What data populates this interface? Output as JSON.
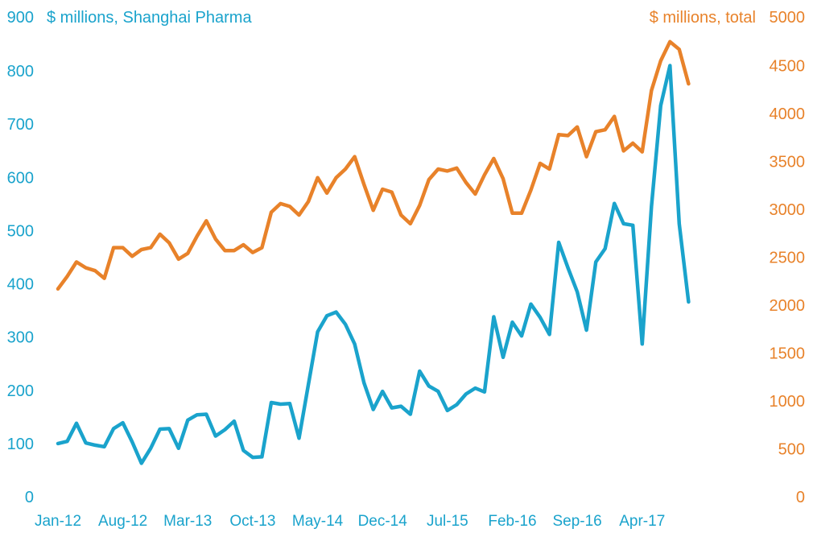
{
  "chart_data": {
    "type": "line",
    "x_ticks": [
      "Jan-12",
      "Aug-12",
      "Mar-13",
      "Oct-13",
      "May-14",
      "Dec-14",
      "Jul-15",
      "Feb-16",
      "Sep-16",
      "Apr-17"
    ],
    "y_left": {
      "label": "$ millions, Shanghai Pharma",
      "ylim": [
        0,
        900
      ],
      "ticks": [
        0,
        100,
        200,
        300,
        400,
        500,
        600,
        700,
        800,
        900
      ]
    },
    "y_right": {
      "label": "$ millions, total",
      "ylim": [
        0,
        5000
      ],
      "ticks": [
        0,
        500,
        1000,
        1500,
        2000,
        2500,
        3000,
        3500,
        4000,
        4500,
        5000
      ]
    },
    "x_start": "Jan-12",
    "grid": false,
    "legend": "none",
    "series": [
      {
        "axis": "left",
        "color": "#1aa3cc",
        "values": [
          100,
          104,
          138,
          101,
          97,
          94,
          128,
          139,
          103,
          63,
          91,
          127,
          128,
          91,
          144,
          154,
          155,
          114,
          126,
          142,
          87,
          74,
          75,
          177,
          174,
          175,
          110,
          210,
          310,
          340,
          347,
          324,
          287,
          214,
          164,
          198,
          167,
          170,
          155,
          236,
          208,
          198,
          162,
          173,
          193,
          204,
          197,
          338,
          262,
          328,
          302,
          362,
          337,
          305,
          478,
          430,
          385,
          313,
          441,
          466,
          551,
          513,
          510,
          287,
          545,
          735,
          810,
          513,
          366
        ]
      },
      {
        "axis": "right",
        "color": "#e8822a",
        "values": [
          2170,
          2300,
          2450,
          2390,
          2360,
          2280,
          2600,
          2600,
          2510,
          2580,
          2600,
          2740,
          2650,
          2480,
          2540,
          2720,
          2880,
          2690,
          2570,
          2570,
          2630,
          2550,
          2600,
          2970,
          3060,
          3030,
          2940,
          3080,
          3330,
          3170,
          3330,
          3420,
          3550,
          3260,
          2990,
          3210,
          3180,
          2940,
          2850,
          3040,
          3310,
          3420,
          3400,
          3430,
          3280,
          3160,
          3360,
          3530,
          3320,
          2960,
          2960,
          3200,
          3480,
          3420,
          3780,
          3770,
          3860,
          3550,
          3810,
          3830,
          3970,
          3610,
          3690,
          3600,
          4240,
          4550,
          4750,
          4670,
          4310
        ]
      }
    ]
  }
}
